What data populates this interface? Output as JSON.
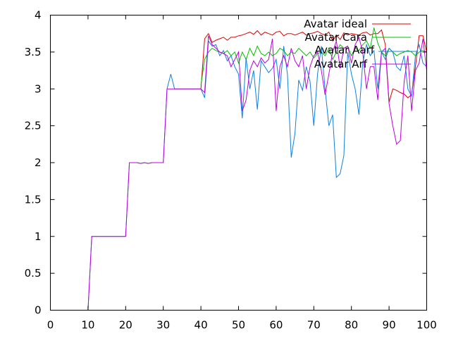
{
  "chart_data": {
    "type": "line",
    "xlim": [
      0,
      100
    ],
    "ylim": [
      0,
      4
    ],
    "x_ticks": [
      0,
      10,
      20,
      30,
      40,
      50,
      60,
      70,
      80,
      90,
      100
    ],
    "y_ticks": [
      0,
      0.5,
      1,
      1.5,
      2,
      2.5,
      3,
      3.5,
      4
    ],
    "x_tick_labels": [
      "0",
      "10",
      "20",
      "30",
      "40",
      "50",
      "60",
      "70",
      "80",
      "90",
      "100"
    ],
    "y_tick_labels": [
      "0",
      "0.5",
      "1",
      "1.5",
      "2",
      "2.5",
      "3",
      "3.5",
      "4"
    ],
    "grid": false,
    "legend_position": "top-right",
    "series": [
      {
        "name": "Avatar ideal",
        "color": "#e00000",
        "x": [
          40,
          41,
          42,
          43,
          44,
          45,
          46,
          47,
          48,
          49,
          50,
          51,
          52,
          53,
          54,
          55,
          56,
          57,
          58,
          59,
          60,
          61,
          62,
          63,
          64,
          65,
          66,
          67,
          68,
          69,
          70,
          71,
          72,
          73,
          74,
          75,
          76,
          77,
          78,
          79,
          80,
          81,
          82,
          83,
          84,
          85,
          86,
          87,
          88,
          89,
          90,
          91,
          92,
          93,
          94,
          95,
          96,
          97,
          98,
          99,
          100
        ],
        "y": [
          3.0,
          3.68,
          3.75,
          3.63,
          3.66,
          3.68,
          3.7,
          3.66,
          3.7,
          3.7,
          3.72,
          3.73,
          3.75,
          3.77,
          3.74,
          3.79,
          3.73,
          3.77,
          3.75,
          3.73,
          3.77,
          3.78,
          3.72,
          3.75,
          3.75,
          3.73,
          3.75,
          3.77,
          3.73,
          3.75,
          3.76,
          3.78,
          3.75,
          3.73,
          3.77,
          3.65,
          3.73,
          3.67,
          3.76,
          3.73,
          3.75,
          3.74,
          3.73,
          3.76,
          3.77,
          3.73,
          3.75,
          3.75,
          3.8,
          3.6,
          2.82,
          3.0,
          2.98,
          2.95,
          2.93,
          2.88,
          2.92,
          3.3,
          3.72,
          3.72,
          3.5
        ]
      },
      {
        "name": "Avatar Cara",
        "color": "#00c000",
        "x": [
          40,
          41,
          42,
          43,
          44,
          45,
          46,
          47,
          48,
          49,
          50,
          51,
          52,
          53,
          54,
          55,
          56,
          57,
          58,
          59,
          60,
          61,
          62,
          63,
          64,
          65,
          66,
          67,
          68,
          69,
          70,
          71,
          72,
          73,
          74,
          75,
          76,
          77,
          78,
          79,
          80,
          81,
          82,
          83,
          84,
          85,
          86,
          87,
          88,
          89,
          90,
          91,
          92,
          93,
          94,
          95,
          96,
          97,
          98,
          99,
          100
        ],
        "y": [
          3.05,
          3.4,
          3.5,
          3.55,
          3.52,
          3.5,
          3.48,
          3.52,
          3.45,
          3.5,
          3.35,
          3.5,
          3.4,
          3.55,
          3.45,
          3.58,
          3.48,
          3.45,
          3.5,
          3.45,
          3.48,
          3.55,
          3.52,
          3.45,
          3.5,
          3.48,
          3.55,
          3.5,
          3.45,
          3.5,
          3.42,
          3.48,
          3.5,
          3.45,
          3.55,
          3.4,
          3.5,
          3.6,
          3.55,
          3.58,
          3.45,
          3.55,
          3.52,
          3.6,
          3.65,
          3.55,
          3.83,
          3.62,
          3.5,
          3.45,
          3.55,
          3.5,
          3.45,
          3.48,
          3.5,
          3.52,
          3.5,
          3.45,
          3.5,
          3.52,
          3.5
        ]
      },
      {
        "name": "Avatar Aarf",
        "color": "#1080e0",
        "x": [
          10,
          11,
          12,
          13,
          14,
          15,
          16,
          17,
          18,
          19,
          20,
          21,
          22,
          23,
          24,
          25,
          26,
          27,
          28,
          29,
          30,
          31,
          32,
          33,
          34,
          35,
          36,
          37,
          38,
          39,
          40,
          41,
          42,
          43,
          44,
          45,
          46,
          47,
          48,
          49,
          50,
          51,
          52,
          53,
          54,
          55,
          56,
          57,
          58,
          59,
          60,
          61,
          62,
          63,
          64,
          65,
          66,
          67,
          68,
          69,
          70,
          71,
          72,
          73,
          74,
          75,
          76,
          77,
          78,
          79,
          80,
          81,
          82,
          83,
          84,
          85,
          86,
          87,
          88,
          89,
          90,
          91,
          92,
          93,
          94,
          95,
          96,
          97,
          98,
          99,
          100
        ],
        "y": [
          0,
          1,
          1,
          1,
          1,
          1,
          1,
          1,
          1,
          1,
          1,
          2,
          2,
          2,
          1.99,
          2,
          1.99,
          2,
          2,
          2,
          2,
          3,
          3.2,
          3,
          3,
          3,
          3,
          3,
          3,
          3,
          3,
          2.88,
          3.65,
          3.58,
          3.6,
          3.45,
          3.52,
          3.38,
          3.45,
          3.3,
          3.2,
          2.6,
          3.42,
          3.0,
          3.25,
          2.72,
          3.38,
          3.3,
          3.22,
          3.28,
          3.4,
          3.0,
          3.58,
          3.2,
          2.07,
          2.4,
          3.12,
          2.98,
          3.3,
          3.1,
          2.5,
          3.2,
          3.58,
          3.0,
          2.5,
          2.65,
          1.8,
          1.85,
          2.1,
          3.5,
          3.2,
          3.0,
          2.65,
          3.35,
          3.6,
          3.45,
          3.52,
          3.0,
          3.5,
          3.4,
          3.55,
          3.5,
          3.3,
          3.25,
          3.45,
          3.0,
          2.9,
          3.45,
          3.6,
          3.35,
          3.3
        ]
      },
      {
        "name": "Avatar Arf",
        "color": "#c000e0",
        "x": [
          10,
          11,
          12,
          13,
          14,
          15,
          16,
          17,
          18,
          19,
          20,
          21,
          22,
          23,
          24,
          25,
          26,
          27,
          28,
          29,
          30,
          31,
          32,
          33,
          34,
          35,
          36,
          37,
          38,
          39,
          40,
          41,
          42,
          43,
          44,
          45,
          46,
          47,
          48,
          49,
          50,
          51,
          52,
          53,
          54,
          55,
          56,
          57,
          58,
          59,
          60,
          61,
          62,
          63,
          64,
          65,
          66,
          67,
          68,
          69,
          70,
          71,
          72,
          73,
          74,
          75,
          76,
          77,
          78,
          79,
          80,
          81,
          82,
          83,
          84,
          85,
          86,
          87,
          88,
          89,
          90,
          91,
          92,
          93,
          94,
          95,
          96,
          97,
          98,
          99,
          100
        ],
        "y": [
          0,
          1,
          1,
          1,
          1,
          1,
          1,
          1,
          1,
          1,
          1,
          2,
          2,
          2,
          1.99,
          2,
          1.99,
          2,
          2,
          2,
          2,
          3,
          3,
          3,
          3,
          3,
          3,
          3,
          3,
          3,
          3,
          2.95,
          3.72,
          3.6,
          3.55,
          3.5,
          3.48,
          3.45,
          3.3,
          3.4,
          3.5,
          2.7,
          2.85,
          3.25,
          3.38,
          3.3,
          3.42,
          3.35,
          3.4,
          3.68,
          2.7,
          3.3,
          3.45,
          3.3,
          3.55,
          3.38,
          3.3,
          3.45,
          3.0,
          3.3,
          3.45,
          3.5,
          3.25,
          2.92,
          3.2,
          3.5,
          3.65,
          3.28,
          3.55,
          3.58,
          3.35,
          3.6,
          3.7,
          3.5,
          3.0,
          3.3,
          3.3,
          2.85,
          3.5,
          3.55,
          2.8,
          2.5,
          2.25,
          2.3,
          3.1,
          3.45,
          2.7,
          3.25,
          3.35,
          3.68,
          3.25
        ]
      }
    ]
  }
}
